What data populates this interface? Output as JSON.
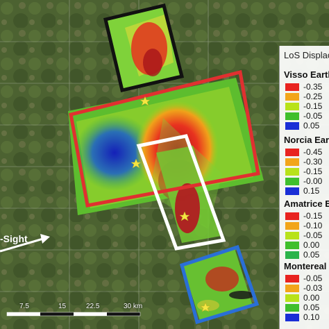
{
  "legend": {
    "title": "LoS Displac",
    "sections": [
      {
        "name": "Visso Eartl",
        "items": [
          {
            "value": "-0.35",
            "color": "#e8231f"
          },
          {
            "value": "-0.25",
            "color": "#f2a51a"
          },
          {
            "value": "-0.15",
            "color": "#b8e21a"
          },
          {
            "value": "-0.05",
            "color": "#3fbf2c"
          },
          {
            "value": "0.05",
            "color": "#1a2fd6"
          }
        ]
      },
      {
        "name": "Norcia Ear",
        "items": [
          {
            "value": "-0.45",
            "color": "#e8231f"
          },
          {
            "value": "-0.30",
            "color": "#f2a51a"
          },
          {
            "value": "-0.15",
            "color": "#b8e21a"
          },
          {
            "value": "-0.00",
            "color": "#3fbf2c"
          },
          {
            "value": "0.15",
            "color": "#1a2fd6"
          }
        ]
      },
      {
        "name": "Amatrice E",
        "items": [
          {
            "value": "-0.15",
            "color": "#e8231f"
          },
          {
            "value": "-0.10",
            "color": "#f2a51a"
          },
          {
            "value": "-0.05",
            "color": "#b8e21a"
          },
          {
            "value": "0.00",
            "color": "#3fbf2c"
          },
          {
            "value": "0.05",
            "color": "#2ab34a"
          }
        ]
      },
      {
        "name": "Montereal",
        "items": [
          {
            "value": "-0.05",
            "color": "#e8231f"
          },
          {
            "value": "-0.03",
            "color": "#f2a51a"
          },
          {
            "value": "0.00",
            "color": "#b8e21a"
          },
          {
            "value": "0.05",
            "color": "#3fbf2c"
          },
          {
            "value": "0.10",
            "color": "#1a2fd6"
          }
        ]
      }
    ]
  },
  "los_label": "-Sight",
  "scale_labels": [
    "7.5",
    "15",
    "22.5",
    "30 km"
  ],
  "colors": {
    "visso_box": "#111111",
    "norcia_box": "#e03030",
    "amatrice_box": "#ffffff",
    "montereale_box": "#2a6fd6",
    "epicenter": "#f5e642"
  }
}
